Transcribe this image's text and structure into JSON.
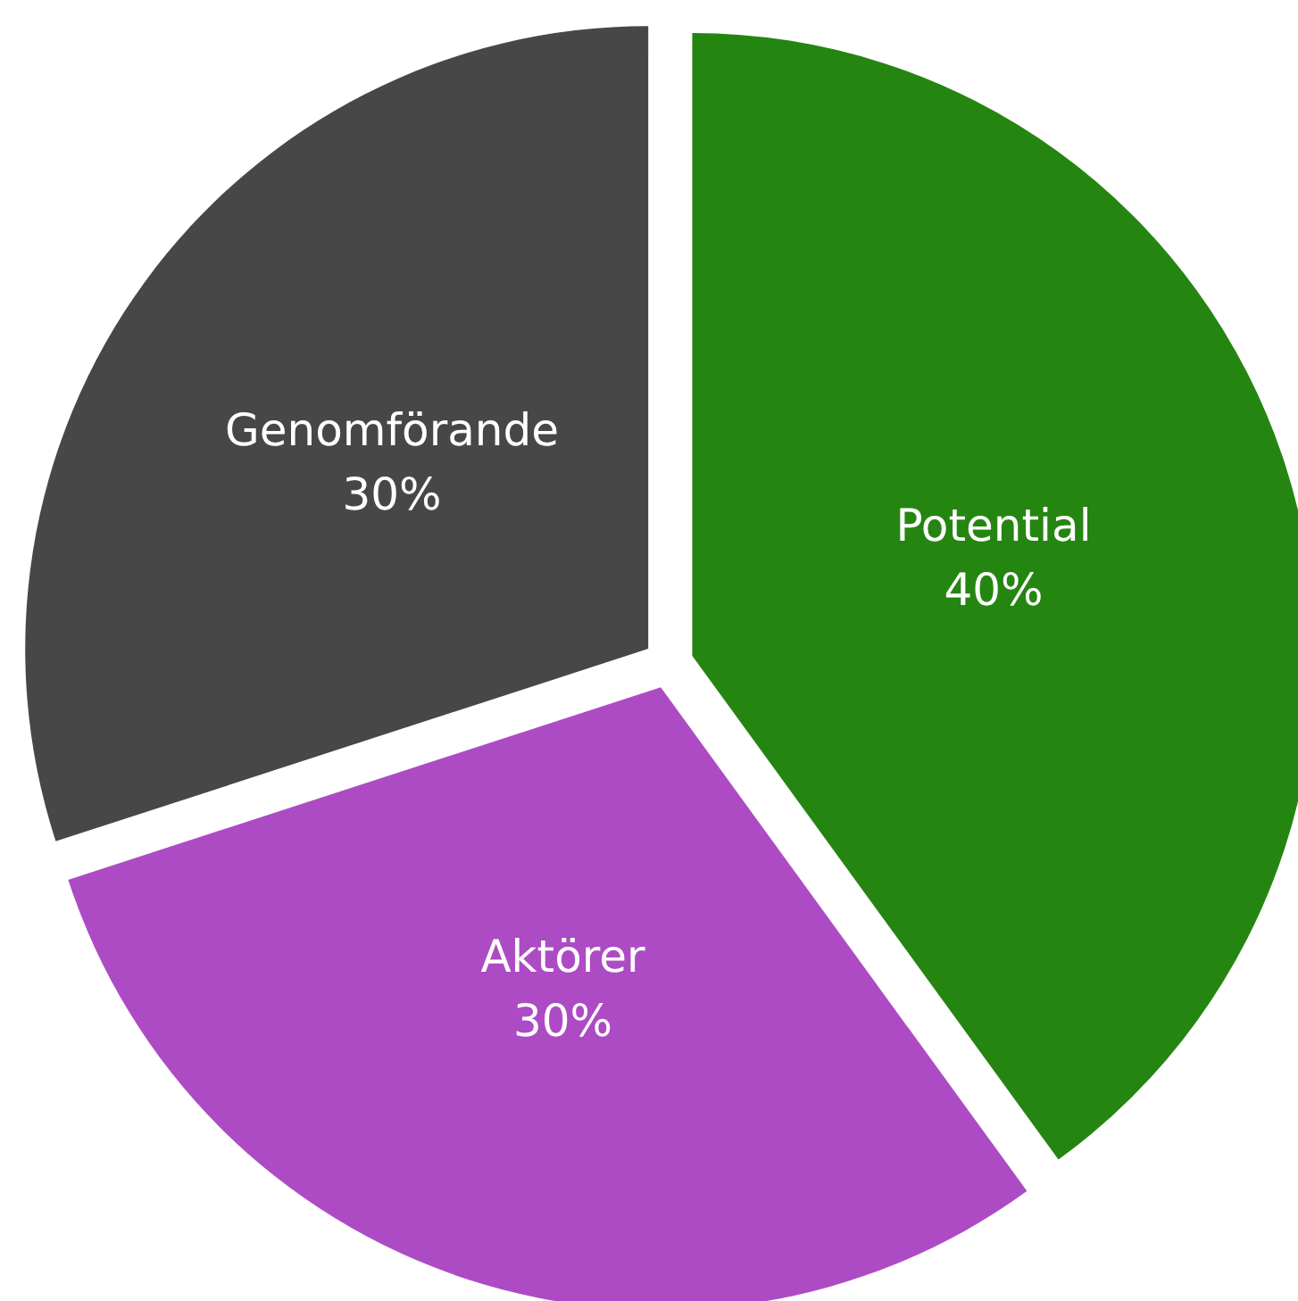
{
  "chart_data": {
    "type": "pie",
    "categories": [
      "Potential",
      "Aktörer",
      "Genomförande"
    ],
    "values": [
      40,
      30,
      30
    ],
    "value_labels": [
      "40%",
      "30%",
      "30%"
    ],
    "colors": [
      "#258511",
      "#ad4bc4",
      "#474747"
    ],
    "legend": false
  }
}
